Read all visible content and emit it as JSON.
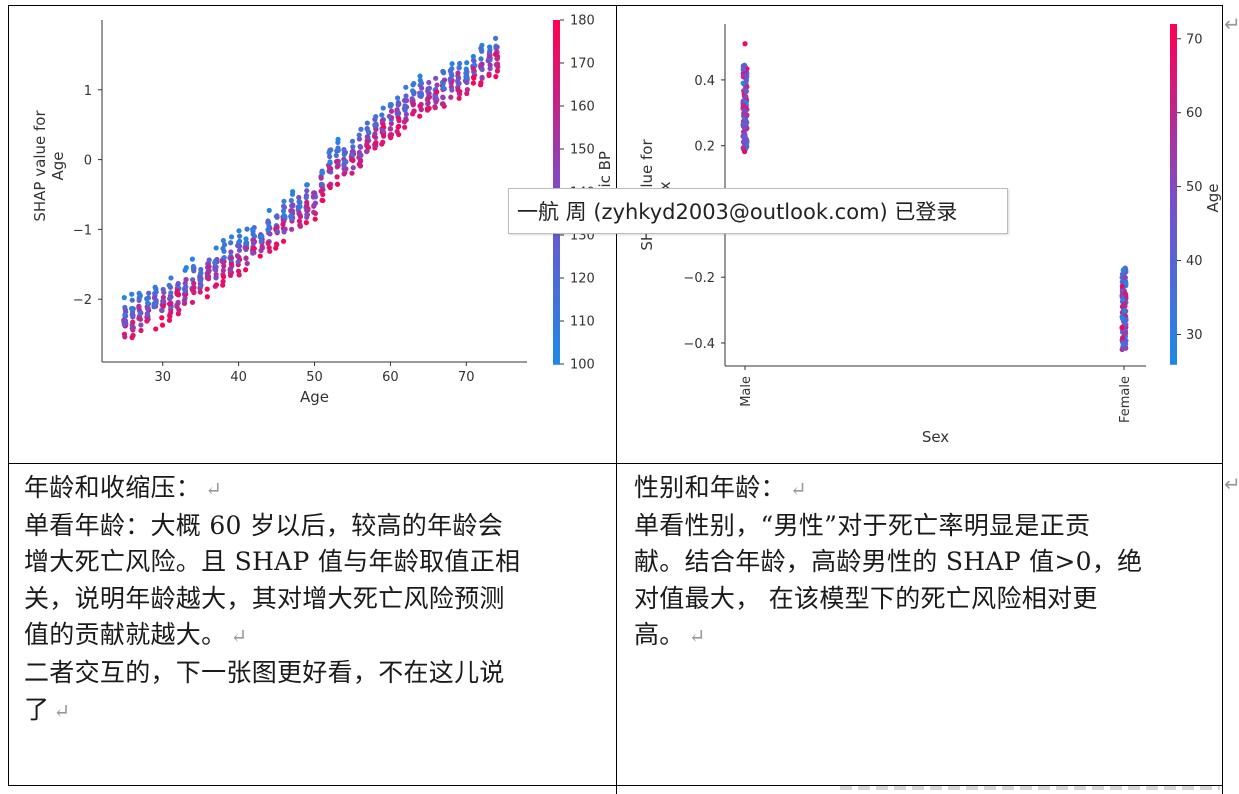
{
  "tooltip": {
    "text": "一航 周 (zyhkyd2003@outlook.com) 已登录"
  },
  "cells": {
    "left": {
      "lines": [
        "年龄和收缩压：",
        "单看年龄：大概 60 岁以后，较高的年龄会",
        "增大死亡风险。且 SHAP 值与年龄取值正相",
        "关，说明年龄越大，其对增大死亡风险预测",
        "值的贡献就越大。",
        "二者交互的，下一张图更好看，不在这儿说",
        "了"
      ],
      "return_mark_lines": [
        0,
        4,
        6
      ]
    },
    "right": {
      "lines": [
        "性别和年龄：",
        "单看性别，“男性”对于死亡率明显是正贡",
        "献。结合年龄，高龄男性的 SHAP 值>0，绝",
        "对值最大， 在该模型下的死亡风险相对更",
        "高。"
      ],
      "return_mark_lines": [
        0,
        4
      ]
    }
  },
  "return_mark": "↵",
  "chart_data": [
    {
      "type": "scatter",
      "title": "",
      "xlabel": "Age",
      "ylabel": "SHAP value for\nAge",
      "xlim": [
        22,
        78
      ],
      "ylim": [
        -2.9,
        2.0
      ],
      "xticks": [
        30,
        40,
        50,
        60,
        70
      ],
      "yticks": [
        -2,
        -1,
        0,
        1
      ],
      "colorbar": {
        "label": "Systolic BP",
        "ticks": [
          100,
          110,
          120,
          130,
          140,
          150,
          160,
          170,
          180
        ],
        "range": [
          100,
          180
        ],
        "low_color": "#1e88e5",
        "high_color": "#ff0052"
      },
      "trend": {
        "description": "SHAP value rises approximately linearly with Age, with a jump near age 52",
        "points": [
          [
            25,
            -2.3
          ],
          [
            30,
            -2.05
          ],
          [
            35,
            -1.7
          ],
          [
            40,
            -1.35
          ],
          [
            45,
            -0.95
          ],
          [
            50,
            -0.55
          ],
          [
            52,
            -0.1
          ],
          [
            55,
            0.05
          ],
          [
            60,
            0.6
          ],
          [
            65,
            0.95
          ],
          [
            70,
            1.2
          ],
          [
            74,
            1.5
          ]
        ]
      },
      "grid": false
    },
    {
      "type": "scatter",
      "title": "",
      "xlabel": "Sex",
      "ylabel": "SHAP value for\nSex",
      "categories": [
        "Male",
        "Female"
      ],
      "ylim": [
        -0.47,
        0.57
      ],
      "yticks": [
        -0.4,
        -0.2,
        0.2,
        0.4
      ],
      "groups": [
        {
          "category": "Male",
          "min": 0.18,
          "max": 0.45,
          "outlier": 0.51
        },
        {
          "category": "Female",
          "min": -0.42,
          "max": -0.17
        }
      ],
      "colorbar": {
        "label": "Age",
        "ticks": [
          30,
          40,
          50,
          60,
          70
        ],
        "range": [
          26,
          72
        ],
        "low_color": "#1e88e5",
        "high_color": "#ff0052"
      },
      "grid": false
    }
  ]
}
